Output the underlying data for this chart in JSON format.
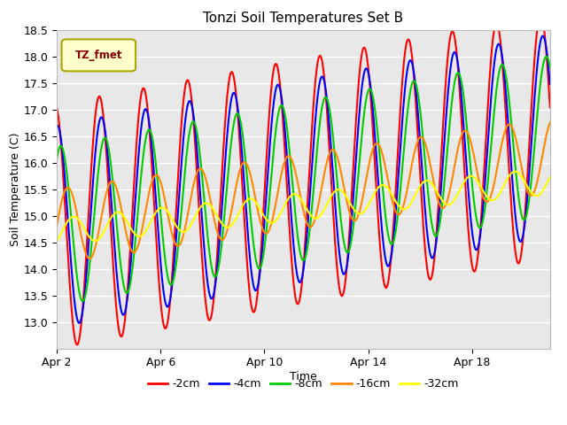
{
  "title": "Tonzi Soil Temperatures Set B",
  "xlabel": "Time",
  "ylabel": "Soil Temperature (C)",
  "legend_label": "TZ_fmet",
  "series_labels": [
    "-2cm",
    "-4cm",
    "-8cm",
    "-16cm",
    "-32cm"
  ],
  "series_colors": [
    "#ff0000",
    "#0000ff",
    "#00cc00",
    "#ff8800",
    "#ffff00"
  ],
  "ylim": [
    12.5,
    18.5
  ],
  "yticks": [
    13.0,
    13.5,
    14.0,
    14.5,
    15.0,
    15.5,
    16.0,
    16.5,
    17.0,
    17.5,
    18.0,
    18.5
  ],
  "xtick_labels": [
    "Apr 2",
    "Apr 6",
    "Apr 10",
    "Apr 14",
    "Apr 18"
  ],
  "plot_bg_color": "#e8e8e8",
  "grid_color": "#ffffff",
  "line_width": 1.5,
  "n_days": 19,
  "points_per_day": 48,
  "period": 1.7
}
